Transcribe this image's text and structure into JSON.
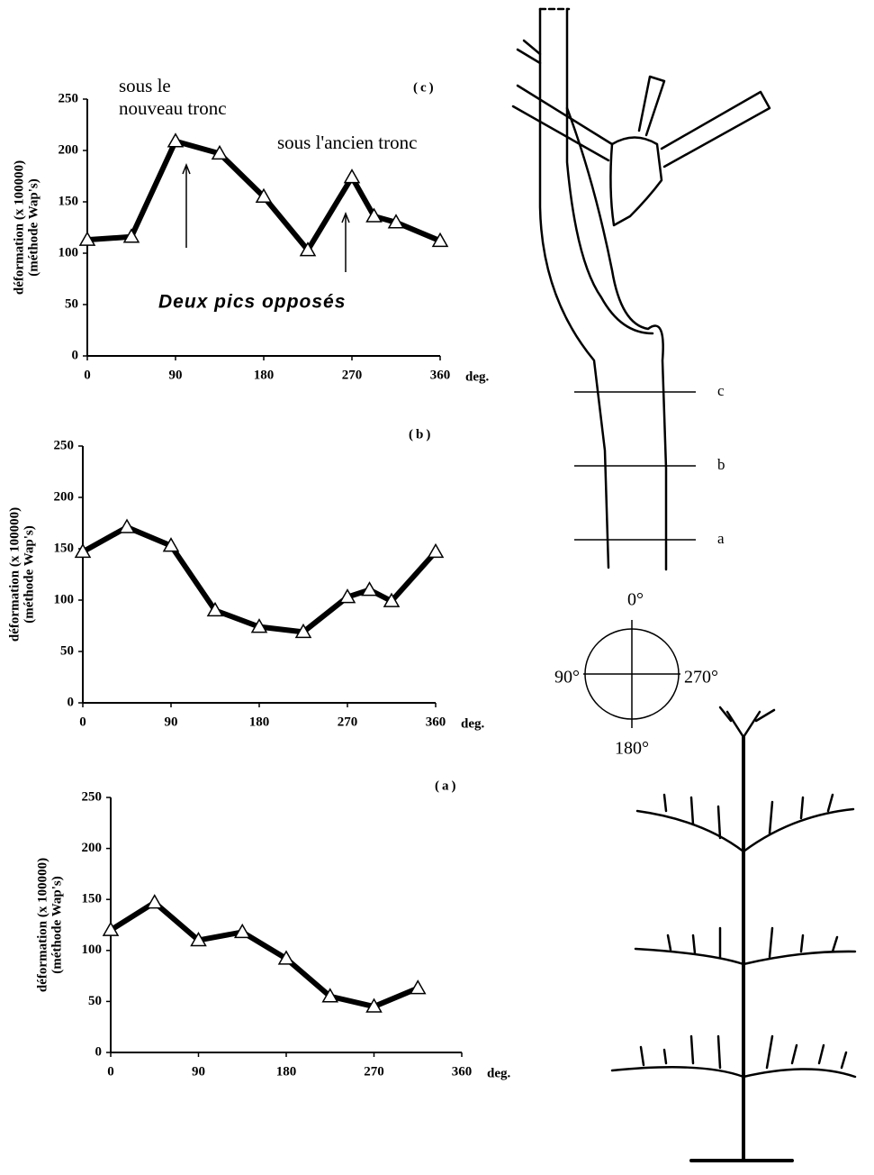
{
  "chart_data": [
    {
      "type": "line",
      "panel_label": "(c)",
      "y_label": [
        "déformation (x 100000)",
        "(méthode Wap's)"
      ],
      "x_unit": "deg.",
      "annotations": [
        "sous le",
        "nouveau tronc",
        "sous l'ancien tronc",
        "Deux pics opposés"
      ],
      "x": [
        0,
        45,
        90,
        135,
        180,
        225,
        270,
        292.5,
        315,
        360
      ],
      "series": [
        {
          "color": "#000000",
          "values": [
            113,
            116,
            209,
            197,
            155,
            103,
            174,
            136,
            130,
            112
          ]
        }
      ],
      "xlim": [
        0,
        360
      ],
      "xticks": [
        0,
        90,
        180,
        270,
        360
      ],
      "ylim": [
        0,
        250
      ],
      "yticks": [
        0,
        50,
        100,
        150,
        200,
        250
      ]
    },
    {
      "type": "line",
      "panel_label": "(b)",
      "y_label": [
        "déformation (x 100000)",
        "(méthode Wap's)"
      ],
      "x_unit": "deg.",
      "x": [
        0,
        45,
        90,
        135,
        180,
        225,
        270,
        292.5,
        315,
        360
      ],
      "series": [
        {
          "color": "#000000",
          "values": [
            147,
            171,
            153,
            90,
            74,
            69,
            103,
            110,
            99,
            147
          ]
        }
      ],
      "xlim": [
        0,
        360
      ],
      "xticks": [
        0,
        90,
        180,
        270,
        360
      ],
      "ylim": [
        0,
        250
      ],
      "yticks": [
        0,
        50,
        100,
        150,
        200,
        250
      ]
    },
    {
      "type": "line",
      "panel_label": "(a)",
      "y_label": [
        "déformation (x 100000)",
        "(méthode Wap's)"
      ],
      "x_unit": "deg.",
      "x": [
        0,
        45,
        90,
        135,
        180,
        225,
        270,
        315
      ],
      "series": [
        {
          "color": "#000000",
          "values": [
            120,
            147,
            110,
            118,
            92,
            55,
            45,
            63
          ]
        }
      ],
      "xlim": [
        0,
        360
      ],
      "xticks": [
        0,
        90,
        180,
        270,
        360
      ],
      "ylim": [
        0,
        250
      ],
      "yticks": [
        0,
        50,
        100,
        150,
        200,
        250
      ]
    }
  ],
  "diagram": {
    "section_labels": [
      "c",
      "b",
      "a"
    ],
    "compass": [
      "0°",
      "90°",
      "270°",
      "180°"
    ]
  }
}
